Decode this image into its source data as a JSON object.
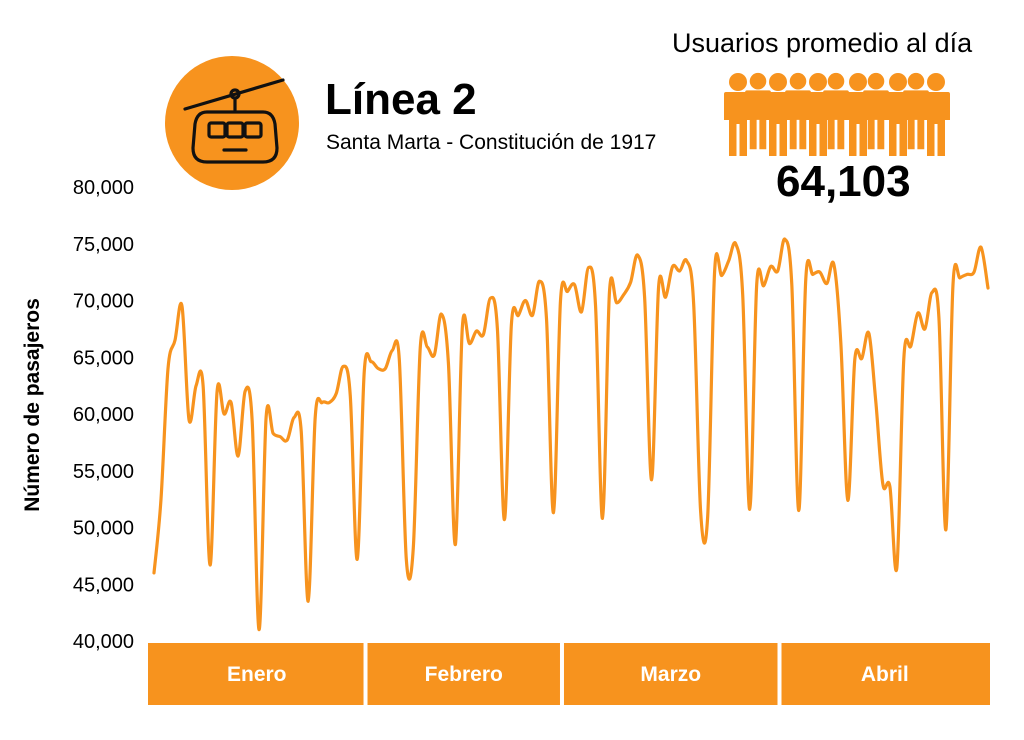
{
  "header": {
    "title": "Línea 2",
    "subtitle": "Santa Marta - Constitución de 1917",
    "users_label": "Usuarios promedio al día",
    "users_value": "64,103",
    "icon": "cable-car-icon",
    "people_icon": "people-group-icon",
    "accent_color": "#f7931e"
  },
  "chart_data": {
    "type": "line",
    "ylabel": "Número de pasajeros",
    "xlabel": "",
    "ylim": [
      40000,
      80000
    ],
    "yticks": [
      "40,000",
      "45,000",
      "50,000",
      "55,000",
      "60,000",
      "65,000",
      "70,000",
      "75,000",
      "80,000"
    ],
    "ytick_values": [
      40000,
      45000,
      50000,
      55000,
      60000,
      65000,
      70000,
      75000,
      80000
    ],
    "months": [
      {
        "label": "Enero",
        "days": 31
      },
      {
        "label": "Febrero",
        "days": 28
      },
      {
        "label": "Marzo",
        "days": 31
      },
      {
        "label": "Abril",
        "days": 30
      }
    ],
    "grid": false,
    "series": [
      {
        "color": "#f7931e",
        "values": [
          46000,
          52500,
          64000,
          66500,
          69500,
          59500,
          62500,
          62500,
          46700,
          62000,
          60000,
          61000,
          56300,
          62000,
          59500,
          41000,
          59700,
          58300,
          58000,
          57700,
          59700,
          58500,
          43500,
          59700,
          61000,
          61000,
          61800,
          64200,
          61700,
          47200,
          63800,
          64600,
          64000,
          64000,
          65600,
          64800,
          47200,
          48200,
          65900,
          65900,
          65200,
          68800,
          64500,
          48500,
          67700,
          66200,
          67300,
          67000,
          70200,
          67500,
          50700,
          67900,
          68700,
          70000,
          68700,
          71700,
          68400,
          51300,
          70000,
          70800,
          71400,
          69000,
          72900,
          69600,
          50800,
          70800,
          69800,
          70500,
          71600,
          74000,
          70300,
          54200,
          71200,
          70300,
          73000,
          72600,
          73500,
          69800,
          51300,
          51000,
          72700,
          72200,
          73500,
          75000,
          70500,
          51600,
          71400,
          71300,
          73000,
          72600,
          75400,
          71400,
          51500,
          71900,
          72300,
          72500,
          71500,
          73200,
          66300,
          52400,
          64800,
          64900,
          67100,
          61000,
          53800,
          53600,
          46500,
          65000,
          66000,
          68900,
          67500,
          70700,
          68500,
          49800,
          71400,
          72000,
          72300,
          72500,
          74700,
          71100
        ]
      }
    ]
  }
}
